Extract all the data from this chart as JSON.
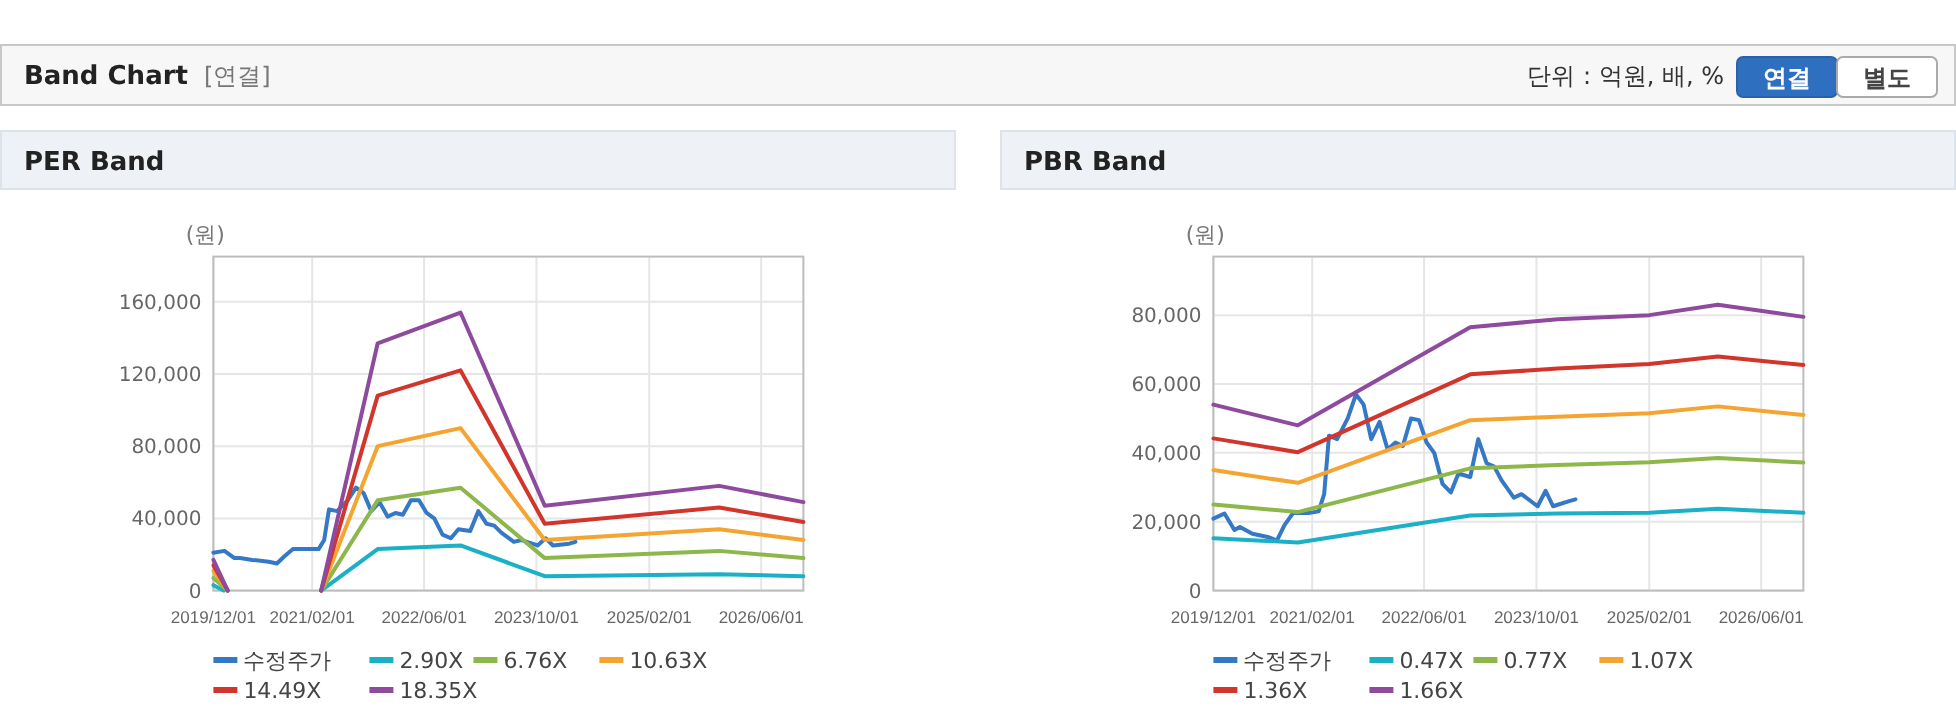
{
  "chart_data": [
    {
      "type": "other",
      "title": "Band Chart",
      "annotations": [
        "[연결]",
        "단위 : 억원, 배, %",
        "연결",
        "별도"
      ]
    },
    {
      "type": "line",
      "title": "PER Band",
      "ylabel": "(원)",
      "xlim": [
        "2019-12-01",
        "2026-12-01"
      ],
      "ylim": [
        0,
        185000
      ],
      "xticks": [
        {
          "value": "2019-12-01",
          "label": "2019/12/01"
        },
        {
          "value": "2021-02-01",
          "label": "2021/02/01"
        },
        {
          "value": "2022-06-01",
          "label": "2022/06/01"
        },
        {
          "value": "2023-10-01",
          "label": "2023/10/01"
        },
        {
          "value": "2025-02-01",
          "label": "2025/02/01"
        },
        {
          "value": "2026-06-01",
          "label": "2026/06/01"
        }
      ],
      "yticks": [
        0,
        {
          "value": 40000,
          "label": "40,000"
        },
        {
          "value": 80000,
          "label": "80,000"
        },
        {
          "value": 120000,
          "label": "120,000"
        },
        {
          "value": 160000,
          "label": "160,000"
        }
      ],
      "grid": true,
      "legend": "bottom",
      "series": [
        {
          "name": "수정주가",
          "color": "#3478c6",
          "x": [
            "2019-12-01",
            "2020-01-18",
            "2020-03-01",
            "2020-03-25",
            "2020-05-18",
            "2020-07-28",
            "2020-09-01",
            "2020-10-04",
            "2020-11-10",
            "2021-01-15",
            "2021-03-01",
            "2021-03-25",
            "2021-04-15",
            "2021-05-20",
            "2021-07-05",
            "2021-08-10",
            "2021-09-12",
            "2021-10-15",
            "2021-11-20",
            "2021-12-25",
            "2022-01-28",
            "2022-03-01",
            "2022-04-05",
            "2022-05-10",
            "2022-06-12",
            "2022-07-15",
            "2022-08-20",
            "2022-09-25",
            "2022-10-28",
            "2022-12-18",
            "2023-01-22",
            "2023-02-27",
            "2023-04-01",
            "2023-05-03",
            "2023-06-25",
            "2023-07-28",
            "2023-10-06",
            "2023-11-10",
            "2023-12-12",
            "2024-02-20",
            "2024-03-18"
          ],
          "values": [
            21000,
            22000,
            18000,
            18000,
            17000,
            16000,
            15000,
            19000,
            23000,
            23000,
            23000,
            28000,
            45000,
            44000,
            50000,
            57000,
            54000,
            44000,
            49000,
            41000,
            43000,
            42000,
            50000,
            50000,
            43000,
            40000,
            31000,
            29000,
            34000,
            33000,
            44000,
            37000,
            36000,
            32000,
            27000,
            28000,
            25000,
            29000,
            25000,
            26000,
            27000
          ]
        },
        {
          "name": "2.90X",
          "color": "#1bb0c6",
          "x": [
            "2021-03-12",
            "2021-11-12",
            "2022-11-06",
            "2023-11-06",
            "2025-12-01",
            "2026-12-01"
          ],
          "values": [
            0,
            23000,
            25000,
            8000,
            9000,
            8000
          ]
        },
        {
          "name": "6.76X",
          "color": "#8db74a",
          "x": [
            "2021-03-12",
            "2021-11-12",
            "2022-11-06",
            "2023-11-06",
            "2025-12-01",
            "2026-12-01"
          ],
          "values": [
            0,
            50000,
            57000,
            18000,
            22000,
            18000
          ]
        },
        {
          "name": "10.63X",
          "color": "#f5a431",
          "x": [
            "2021-03-12",
            "2021-11-12",
            "2022-11-06",
            "2023-11-06",
            "2025-12-01",
            "2026-12-01"
          ],
          "values": [
            0,
            80000,
            90000,
            28000,
            34000,
            28000
          ]
        },
        {
          "name": "14.49X",
          "color": "#d1352b",
          "x": [
            "2021-03-12",
            "2021-11-12",
            "2022-11-06",
            "2023-11-06",
            "2025-12-01",
            "2026-12-01"
          ],
          "values": [
            0,
            108000,
            122000,
            37000,
            46000,
            38000
          ]
        },
        {
          "name": "18.35X",
          "color": "#8e4b9d",
          "x": [
            "2021-03-12",
            "2021-11-12",
            "2022-11-06",
            "2023-11-06",
            "2025-12-01",
            "2026-12-01"
          ],
          "values": [
            0,
            137000,
            154000,
            47000,
            58000,
            49000
          ]
        },
        {
          "color": "#1bb0c6",
          "x": [
            "2019-12-01",
            "2020-01-15"
          ],
          "values": [
            3000,
            0
          ]
        },
        {
          "color": "#8db74a",
          "x": [
            "2019-12-01",
            "2020-02-01"
          ],
          "values": [
            7000,
            0
          ]
        },
        {
          "color": "#f5a431",
          "x": [
            "2019-12-01",
            "2020-02-01"
          ],
          "values": [
            11000,
            0
          ]
        },
        {
          "color": "#d1352b",
          "x": [
            "2019-12-01",
            "2020-02-01"
          ],
          "values": [
            14000,
            0
          ]
        },
        {
          "color": "#8e4b9d",
          "x": [
            "2019-12-01",
            "2020-02-01"
          ],
          "values": [
            17000,
            0
          ]
        }
      ]
    },
    {
      "type": "line",
      "title": "PBR Band",
      "ylabel": "(원)",
      "xlim": [
        "2019-12-01",
        "2026-12-01"
      ],
      "ylim": [
        0,
        97000
      ],
      "xticks": [
        {
          "value": "2019-12-01",
          "label": "2019/12/01"
        },
        {
          "value": "2021-02-01",
          "label": "2021/02/01"
        },
        {
          "value": "2022-06-01",
          "label": "2022/06/01"
        },
        {
          "value": "2023-10-01",
          "label": "2023/10/01"
        },
        {
          "value": "2025-02-01",
          "label": "2025/02/01"
        },
        {
          "value": "2026-06-01",
          "label": "2026/06/01"
        }
      ],
      "yticks": [
        0,
        {
          "value": 20000,
          "label": "20,000"
        },
        {
          "value": 40000,
          "label": "40,000"
        },
        {
          "value": 60000,
          "label": "60,000"
        },
        {
          "value": 80000,
          "label": "80,000"
        }
      ],
      "grid": true,
      "legend": "bottom",
      "series": [
        {
          "name": "수정주가",
          "color": "#3478c6",
          "x": [
            "2019-12-01",
            "2020-01-18",
            "2020-03-01",
            "2020-03-25",
            "2020-05-18",
            "2020-07-28",
            "2020-09-01",
            "2020-10-04",
            "2020-11-10",
            "2021-01-15",
            "2021-03-01",
            "2021-03-25",
            "2021-04-15",
            "2021-05-20",
            "2021-07-05",
            "2021-08-10",
            "2021-09-12",
            "2021-10-15",
            "2021-11-20",
            "2021-12-25",
            "2022-01-28",
            "2022-03-01",
            "2022-04-05",
            "2022-05-10",
            "2022-06-12",
            "2022-07-15",
            "2022-08-20",
            "2022-09-25",
            "2022-10-28",
            "2022-12-18",
            "2023-01-22",
            "2023-02-27",
            "2023-04-01",
            "2023-05-03",
            "2023-06-25",
            "2023-07-28",
            "2023-10-06",
            "2023-11-10",
            "2023-12-12",
            "2024-02-20",
            "2024-03-18"
          ],
          "values": [
            20900,
            22400,
            17600,
            18500,
            16500,
            15500,
            14500,
            19000,
            22500,
            22500,
            23000,
            28000,
            45000,
            44000,
            50000,
            57000,
            54000,
            44000,
            49000,
            41000,
            43000,
            42000,
            50000,
            49500,
            43000,
            40000,
            31000,
            28500,
            34000,
            33000,
            44000,
            37000,
            36000,
            32000,
            27000,
            28000,
            24500,
            29000,
            24500,
            26000,
            26500
          ]
        },
        {
          "name": "0.47X",
          "color": "#1bb0c6",
          "x": [
            "2019-12-01",
            "2020-12-01",
            "2022-12-18",
            "2024-01-01",
            "2025-02-01",
            "2025-11-25",
            "2026-12-01"
          ],
          "values": [
            15200,
            14000,
            21800,
            22400,
            22600,
            23800,
            22600
          ]
        },
        {
          "name": "0.77X",
          "color": "#8db74a",
          "x": [
            "2019-12-01",
            "2020-12-01",
            "2022-12-18",
            "2024-01-01",
            "2025-02-01",
            "2025-11-25",
            "2026-12-01"
          ],
          "values": [
            25000,
            22800,
            35500,
            36500,
            37300,
            38500,
            37200
          ]
        },
        {
          "name": "1.07X",
          "color": "#f5a431",
          "x": [
            "2019-12-01",
            "2020-12-01",
            "2022-12-18",
            "2024-01-01",
            "2025-02-01",
            "2025-11-25",
            "2026-12-01"
          ],
          "values": [
            35000,
            31300,
            49500,
            50500,
            51500,
            53500,
            51000
          ]
        },
        {
          "name": "1.36X",
          "color": "#d1352b",
          "x": [
            "2019-12-01",
            "2020-12-01",
            "2022-12-18",
            "2024-01-01",
            "2025-02-01",
            "2025-11-25",
            "2026-12-01"
          ],
          "values": [
            44200,
            40200,
            62800,
            64500,
            65800,
            68000,
            65500
          ]
        },
        {
          "name": "1.66X",
          "color": "#8e4b9d",
          "x": [
            "2019-12-01",
            "2020-12-01",
            "2022-12-18",
            "2024-01-01",
            "2025-02-01",
            "2025-11-25",
            "2026-12-01"
          ],
          "values": [
            54000,
            48000,
            76500,
            78800,
            80000,
            83000,
            79500
          ]
        }
      ]
    }
  ]
}
